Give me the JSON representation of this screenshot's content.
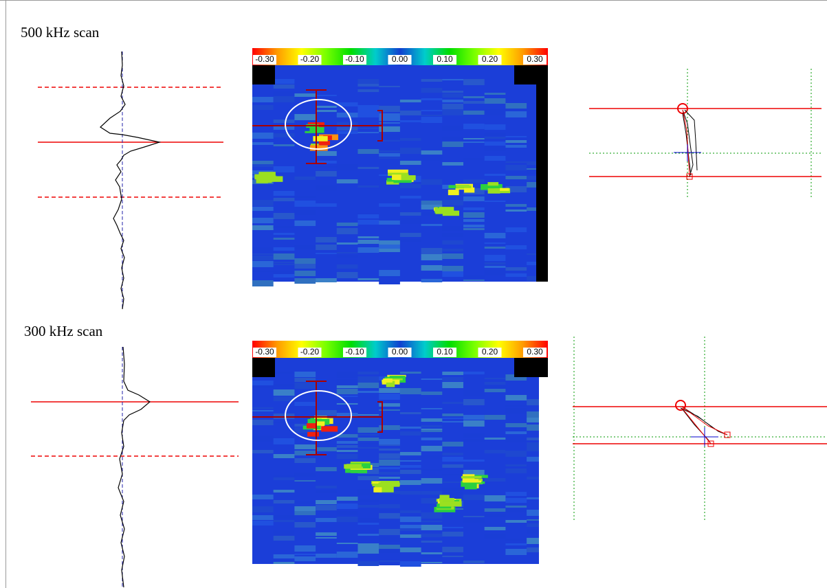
{
  "panels": [
    {
      "label": "500 kHz scan",
      "colorbar": [
        "-0.30",
        "-0.20",
        "-0.10",
        "0.00",
        "0.10",
        "0.20",
        "0.30"
      ]
    },
    {
      "label": "300 kHz scan",
      "colorbar": [
        "-0.30",
        "-0.20",
        "-0.10",
        "0.00",
        "0.10",
        "0.20",
        "0.30"
      ]
    }
  ]
}
